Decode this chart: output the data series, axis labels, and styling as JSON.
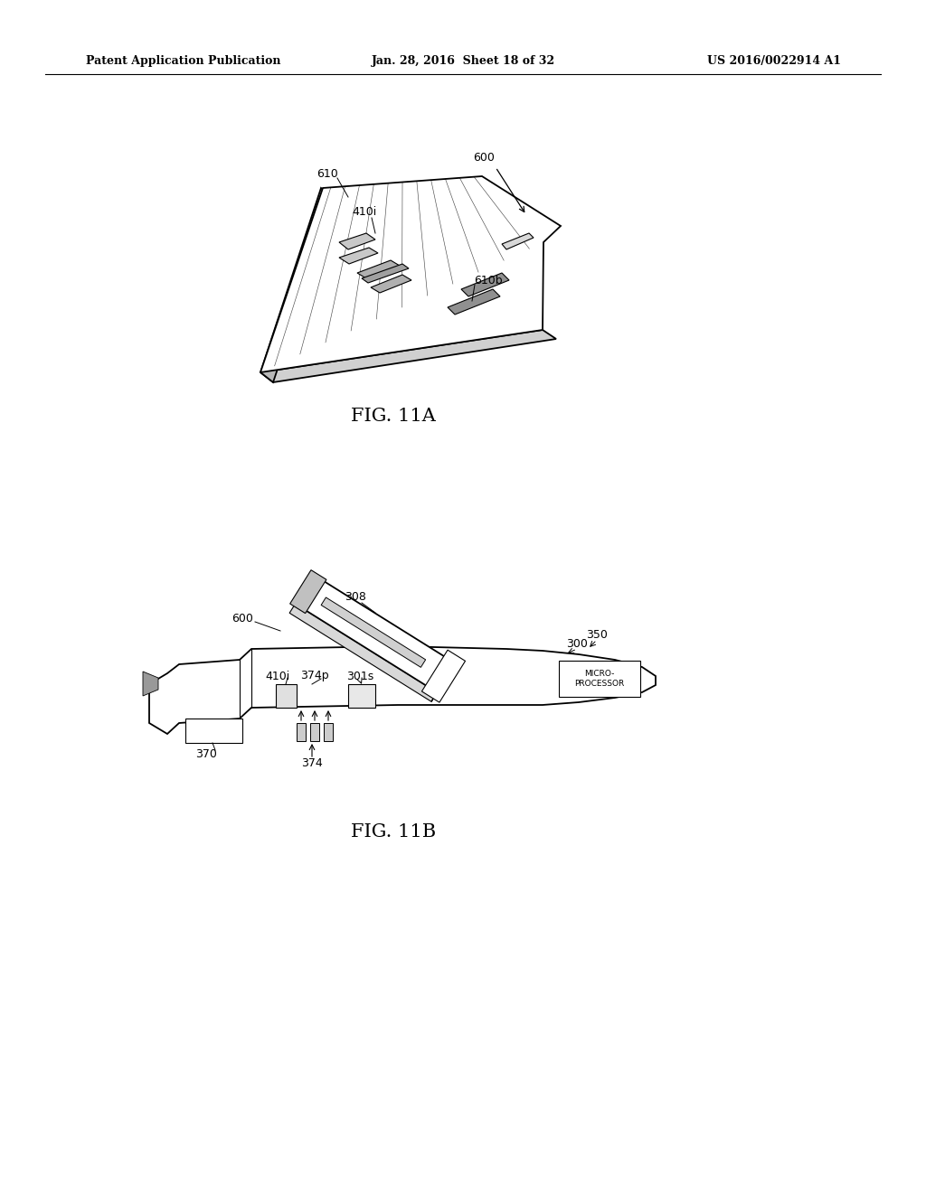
{
  "background_color": "#ffffff",
  "header_left": "Patent Application Publication",
  "header_center": "Jan. 28, 2016  Sheet 18 of 32",
  "header_right": "US 2016/0022914 A1",
  "fig11a_label": "FIG. 11A",
  "fig11b_label": "FIG. 11B"
}
